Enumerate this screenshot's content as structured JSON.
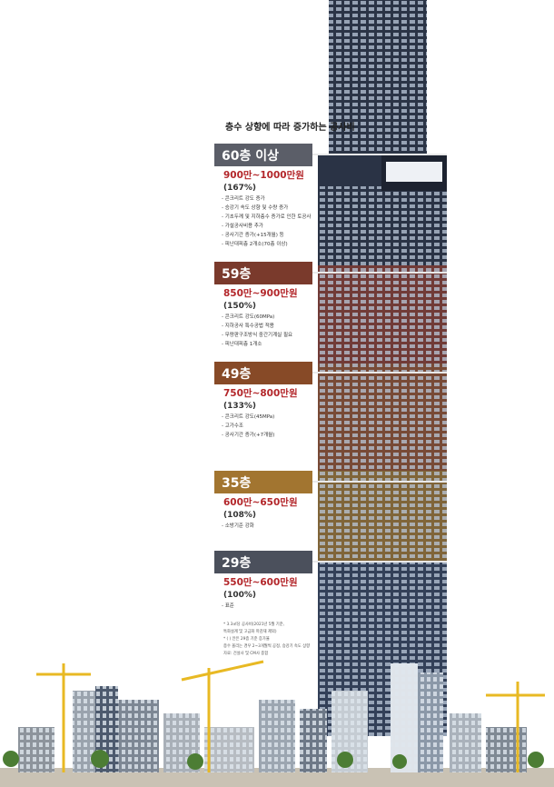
{
  "title": "층수 상향에 따라 증가하는 공사비",
  "tiers": [
    {
      "floor": "60층 이상",
      "cost": "900만~1000만원",
      "ratio": "(167%)",
      "notes": [
        "- 콘크리트 강도 증가",
        "- 승강기 속도 상향 및 수량 증가",
        "- 기초두께 및 지하층수 증가로 인한 토공사",
        "- 가설공사비용 추가",
        "- 공사기간 증가(+15개월) 등",
        "- 피난대피층 2개소(70층 이상)"
      ]
    },
    {
      "floor": "59층",
      "cost": "850만~900만원",
      "ratio": "(150%)",
      "notes": [
        "- 콘크리트 강도(60MPa)",
        "- 지하공사 특수공법 적용",
        "- 무량판구조방식 중간기계실 필요",
        "- 피난대피층 1개소"
      ]
    },
    {
      "floor": "49층",
      "cost": "750만~800만원",
      "ratio": "(133%)",
      "notes": [
        "- 콘크리트 강도(45MPa)",
        "- 고가수조",
        "- 공사기간 증가(+7개월)"
      ]
    },
    {
      "floor": "35층",
      "cost": "600만~650만원",
      "ratio": "(108%)",
      "notes": [
        "- 소방기준 강화"
      ]
    },
    {
      "floor": "29층",
      "cost": "550만~600만원",
      "ratio": "(100%)",
      "notes": [
        "- 표준"
      ]
    }
  ],
  "footnote": [
    "* 3.3㎡당 공사비(2021년 5월 기준,",
    "특화설계 및 고급화 마감재 제외)",
    "* ( ) 안은 29층 기준 증가율",
    "층수 올리는 경우 2~3개월씩 공정, 승강기 속도 상향",
    "자료: 건설사 및 CM사 종합"
  ]
}
